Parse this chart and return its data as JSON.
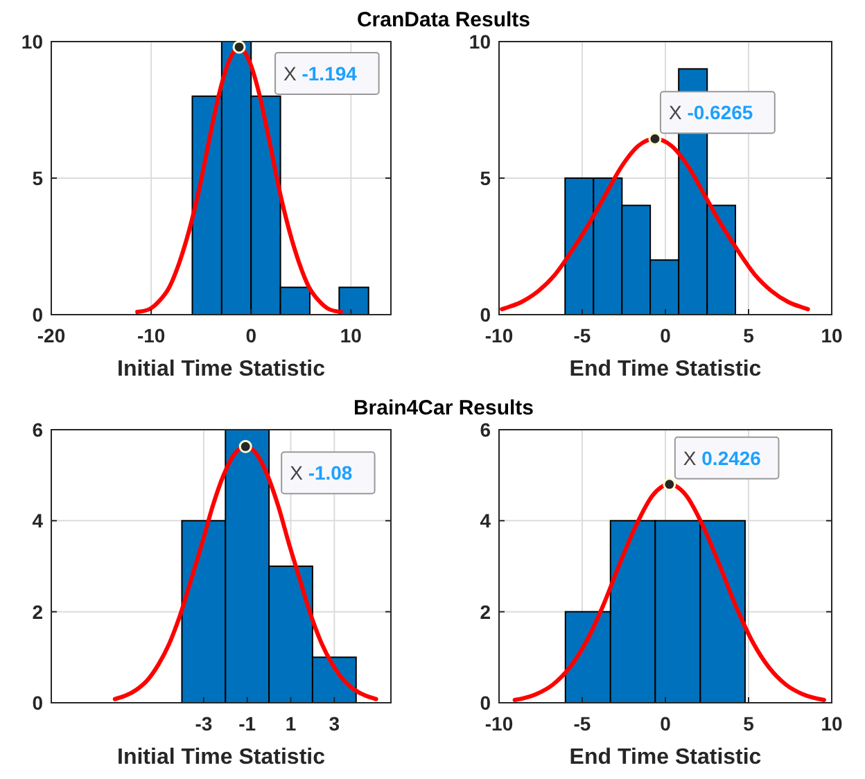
{
  "chart_data": [
    {
      "type": "histogram",
      "title": "CranData Results",
      "xlabel": "Initial Time Statistic",
      "bins": [
        -5.88,
        -2.94,
        0,
        2.94,
        5.88,
        8.82,
        11.76
      ],
      "values": [
        8,
        10,
        8,
        1,
        0,
        1
      ],
      "color": "#0072bd",
      "xlim": [
        -20,
        14
      ],
      "xticks": [
        -20,
        -10,
        0,
        10
      ],
      "ylim": [
        0,
        10
      ],
      "yticks": [
        0,
        5,
        10
      ],
      "grid": true,
      "series": [
        {
          "type": "line",
          "color": "#ff0000",
          "x": [
            -11.39,
            -10.19,
            -9.19,
            -8.19,
            -7.19,
            -6.19,
            -5.19,
            -4.19,
            -3.19,
            -2.19,
            -1.194,
            -0.19,
            0.81,
            1.81,
            2.81,
            3.81,
            4.81,
            5.81,
            6.81,
            7.81,
            9.0
          ],
          "values": [
            0.1,
            0.2,
            0.5,
            1.0,
            1.9,
            3.1,
            4.6,
            6.4,
            8.1,
            9.3,
            9.8,
            9.3,
            8.1,
            6.4,
            4.6,
            3.1,
            1.9,
            1.0,
            0.5,
            0.2,
            0.1
          ]
        }
      ],
      "annotations": [
        {
          "text": "X -1.194",
          "x": -1.194,
          "y": 9.8
        }
      ]
    },
    {
      "type": "histogram",
      "xlabel": "End Time Statistic",
      "bins": [
        -6.03,
        -4.32,
        -2.61,
        -0.91,
        0.8,
        2.51,
        4.21
      ],
      "values": [
        5,
        5,
        4,
        2,
        9,
        4
      ],
      "color": "#0072bd",
      "xlim": [
        -10,
        10
      ],
      "xticks": [
        -10,
        -5,
        0,
        5,
        10
      ],
      "ylim": [
        0,
        10
      ],
      "yticks": [
        0,
        5,
        10
      ],
      "grid": true,
      "series": [
        {
          "type": "line",
          "color": "#ff0000",
          "x": [
            -9.83,
            -9.63,
            -8.63,
            -7.63,
            -6.63,
            -5.63,
            -4.63,
            -3.63,
            -2.63,
            -1.63,
            -0.6265,
            0.37,
            1.37,
            2.37,
            3.37,
            4.37,
            5.37,
            6.37,
            7.37,
            8.37,
            8.57
          ],
          "values": [
            0.2,
            0.24,
            0.47,
            0.87,
            1.47,
            2.33,
            3.29,
            4.36,
            5.43,
            6.18,
            6.44,
            6.18,
            5.43,
            4.36,
            3.29,
            2.33,
            1.47,
            0.87,
            0.47,
            0.24,
            0.2
          ]
        }
      ],
      "annotations": [
        {
          "text": "X -0.6265",
          "x": -0.6265,
          "y": 6.44
        }
      ]
    },
    {
      "type": "histogram",
      "title": "Brain4Car Results",
      "xlabel": "Initial Time Statistic",
      "bins": [
        -4,
        -2,
        0,
        2,
        4
      ],
      "values": [
        4,
        6,
        3,
        1
      ],
      "color": "#0072bd",
      "xlim": [
        -10,
        5.6
      ],
      "xticks": [
        -3,
        -1,
        1,
        3
      ],
      "ylim": [
        0,
        6
      ],
      "yticks": [
        0,
        2,
        4,
        6
      ],
      "grid": true,
      "series": [
        {
          "type": "line",
          "color": "#ff0000",
          "x": [
            -7.08,
            -6.08,
            -5.58,
            -5.08,
            -4.58,
            -4.08,
            -3.58,
            -3.08,
            -2.58,
            -2.08,
            -1.58,
            -1.08,
            -0.58,
            -0.08,
            0.42,
            0.92,
            1.42,
            1.92,
            2.42,
            2.92,
            3.42,
            3.92,
            4.92
          ],
          "values": [
            0.08,
            0.29,
            0.5,
            0.84,
            1.3,
            1.93,
            2.7,
            3.49,
            4.33,
            5.01,
            5.47,
            5.63,
            5.47,
            5.01,
            4.33,
            3.49,
            2.7,
            1.93,
            1.3,
            0.84,
            0.5,
            0.29,
            0.08
          ]
        }
      ],
      "annotations": [
        {
          "text": "X -1.08",
          "x": -1.08,
          "y": 5.63
        }
      ]
    },
    {
      "type": "histogram",
      "xlabel": "End Time Statistic",
      "bins": [
        -6.01,
        -3.3,
        -0.61,
        2.1,
        4.79
      ],
      "values": [
        2,
        4,
        4,
        4
      ],
      "color": "#0072bd",
      "xlim": [
        -10,
        10
      ],
      "xticks": [
        -10,
        -5,
        0,
        5,
        10
      ],
      "ylim": [
        0,
        6
      ],
      "yticks": [
        0,
        2,
        4,
        6
      ],
      "grid": true,
      "series": [
        {
          "type": "line",
          "color": "#ff0000",
          "x": [
            -9.06,
            -7.76,
            -6.76,
            -5.76,
            -4.76,
            -3.76,
            -2.76,
            -1.76,
            -0.76,
            0.2426,
            1.24,
            2.24,
            3.24,
            4.24,
            5.24,
            6.24,
            7.24,
            8.24,
            9.54
          ],
          "values": [
            0.06,
            0.19,
            0.4,
            0.77,
            1.34,
            2.12,
            3.04,
            3.9,
            4.56,
            4.8,
            4.56,
            3.9,
            3.04,
            2.12,
            1.34,
            0.77,
            0.4,
            0.19,
            0.06
          ]
        }
      ],
      "annotations": [
        {
          "text": "X 0.2426",
          "x": 0.2426,
          "y": 4.8
        }
      ]
    }
  ]
}
